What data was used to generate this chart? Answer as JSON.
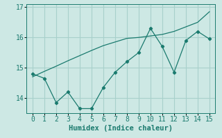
{
  "title": "",
  "xlabel": "Humidex (Indice chaleur)",
  "x": [
    0,
    1,
    2,
    3,
    4,
    5,
    6,
    7,
    8,
    9,
    10,
    11,
    12,
    13,
    14,
    15
  ],
  "y_scatter": [
    14.8,
    14.65,
    13.85,
    14.2,
    13.65,
    13.65,
    14.35,
    14.85,
    15.2,
    15.5,
    16.3,
    15.7,
    14.85,
    15.9,
    16.2,
    15.95
  ],
  "y_trend": [
    14.7,
    14.88,
    15.05,
    15.23,
    15.4,
    15.57,
    15.73,
    15.85,
    15.97,
    16.0,
    16.05,
    16.1,
    16.2,
    16.35,
    16.5,
    16.85
  ],
  "line_color": "#1a7a6e",
  "bg_color": "#cde8e4",
  "grid_color": "#a8d0cb",
  "ylim": [
    13.5,
    17.1
  ],
  "xlim": [
    -0.5,
    15.5
  ],
  "yticks": [
    14,
    15,
    16,
    17
  ],
  "xticks": [
    0,
    1,
    2,
    3,
    4,
    5,
    6,
    7,
    8,
    9,
    10,
    11,
    12,
    13,
    14,
    15
  ],
  "xlabel_fontsize": 7.5,
  "tick_fontsize": 7
}
